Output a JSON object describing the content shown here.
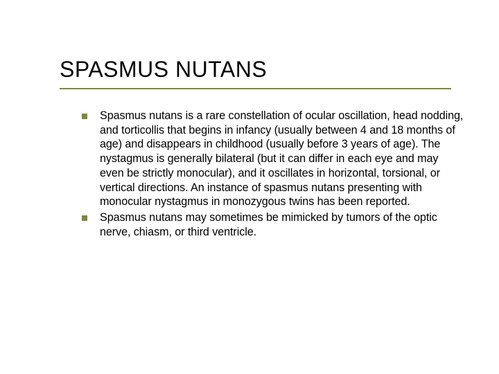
{
  "slide": {
    "title": "SPASMUS NUTANS",
    "bullets": [
      "Spasmus nutans is a rare constellation of ocular oscillation, head nodding, and torticollis that begins in infancy (usually between 4 and 18 months of age) and disappears in childhood (usually before 3 years of age). The nystagmus is generally bilateral (but it can differ in each eye and may even be strictly monocular), and it oscillates in horizontal, torsional, or vertical directions. An instance of spasmus nutans presenting with monocular nystagmus in monozygous twins has been reported.",
      "Spasmus nutans may sometimes be mimicked by tumors of the optic nerve, chiasm, or third ventricle."
    ]
  },
  "style": {
    "title_fontsize": 32,
    "title_color": "#000000",
    "body_fontsize": 16.2,
    "body_color": "#000000",
    "accent_color": "#7a8a3a",
    "background_color": "#ffffff",
    "bullet_shape": "square",
    "bullet_size": 8,
    "underline_width": 565,
    "underline_height": 2,
    "font_family": "Verdana"
  }
}
